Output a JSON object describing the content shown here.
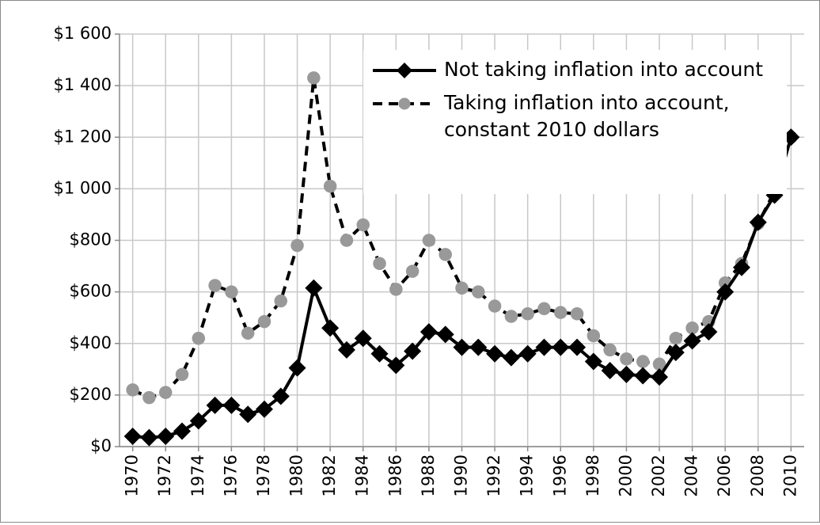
{
  "chart_data": {
    "type": "line",
    "x": [
      1970,
      1971,
      1972,
      1973,
      1974,
      1975,
      1976,
      1977,
      1978,
      1979,
      1980,
      1981,
      1982,
      1983,
      1984,
      1985,
      1986,
      1987,
      1988,
      1989,
      1990,
      1991,
      1992,
      1993,
      1994,
      1995,
      1996,
      1997,
      1998,
      1999,
      2000,
      2001,
      2002,
      2003,
      2004,
      2005,
      2006,
      2007,
      2008,
      2009,
      2010
    ],
    "series": [
      {
        "name": "Not taking inflation into account",
        "color": "#000000",
        "marker": "diamond",
        "dash": false,
        "values": [
          40,
          35,
          40,
          60,
          100,
          160,
          160,
          125,
          145,
          195,
          305,
          615,
          460,
          375,
          420,
          360,
          315,
          370,
          445,
          435,
          385,
          385,
          360,
          345,
          360,
          385,
          385,
          385,
          330,
          295,
          280,
          275,
          270,
          365,
          410,
          445,
          600,
          695,
          870,
          975,
          1200
        ]
      },
      {
        "name": "Taking inflation into account, constant 2010 dollars",
        "color": "#999999",
        "line_color": "#000000",
        "marker": "circle",
        "dash": true,
        "values": [
          220,
          190,
          210,
          280,
          420,
          625,
          600,
          440,
          485,
          565,
          780,
          1430,
          1010,
          800,
          860,
          710,
          610,
          680,
          800,
          745,
          615,
          600,
          545,
          505,
          515,
          535,
          520,
          515,
          430,
          375,
          340,
          330,
          320,
          420,
          460,
          485,
          635,
          710,
          865,
          990,
          1200
        ]
      }
    ],
    "xlim": [
      1969.2,
      2010.8
    ],
    "xticks": [
      1970,
      1972,
      1974,
      1976,
      1978,
      1980,
      1982,
      1984,
      1986,
      1988,
      1990,
      1992,
      1994,
      1996,
      1998,
      2000,
      2002,
      2004,
      2006,
      2008,
      2010
    ],
    "ylim": [
      0,
      1600
    ],
    "yticks": [
      {
        "value": 0,
        "label": "$0"
      },
      {
        "value": 200,
        "label": "$200"
      },
      {
        "value": 400,
        "label": "$400"
      },
      {
        "value": 600,
        "label": "$600"
      },
      {
        "value": 800,
        "label": "$800"
      },
      {
        "value": 1000,
        "label": "$1 000"
      },
      {
        "value": 1200,
        "label": "$1 200"
      },
      {
        "value": 1400,
        "label": "$1 400"
      },
      {
        "value": 1600,
        "label": "$1 600"
      }
    ],
    "grid": true,
    "legend": "upper right"
  }
}
